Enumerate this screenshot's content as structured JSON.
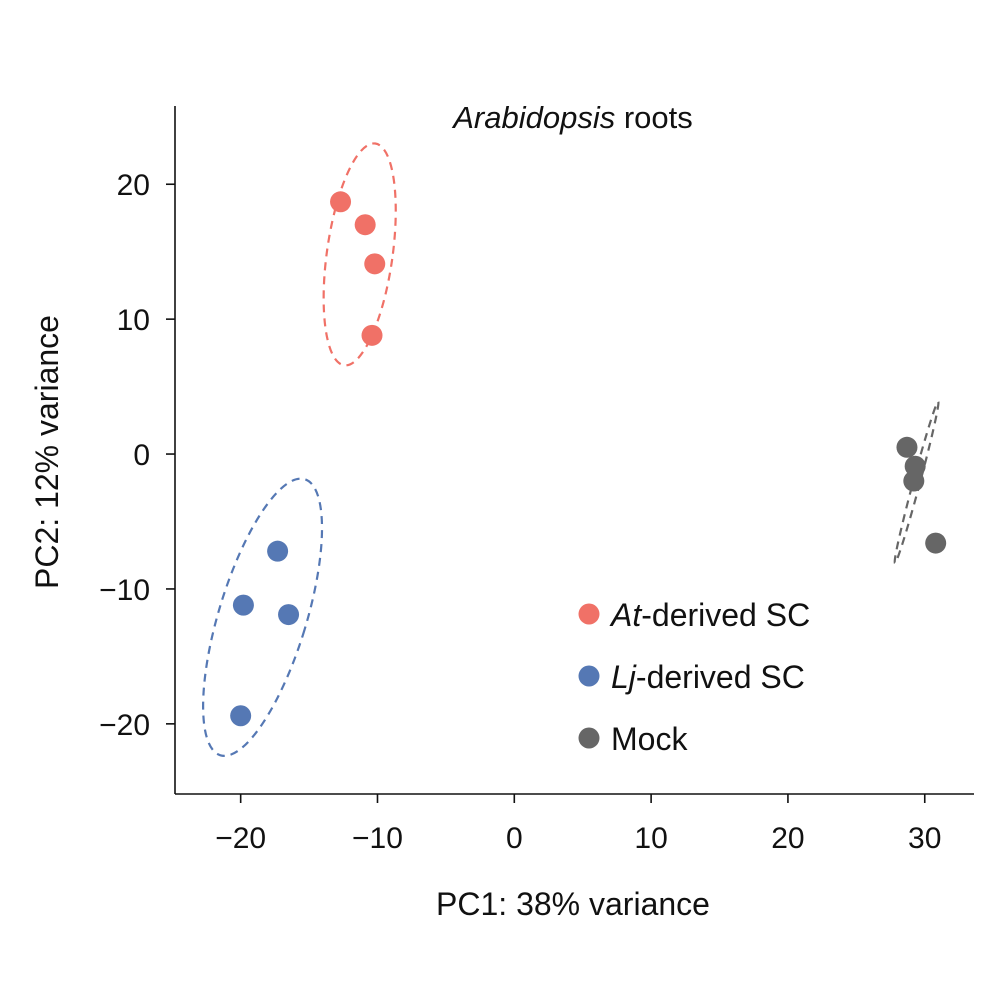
{
  "chart_data": {
    "type": "scatter",
    "title": {
      "italic": "Arabidopsis",
      "rest": " roots"
    },
    "xlabel": "PC1: 38% variance",
    "ylabel": "PC2: 12% variance",
    "xlim": [
      -24.8,
      33.6
    ],
    "ylim": [
      -25.2,
      25.8
    ],
    "xticks": [
      -20,
      -10,
      0,
      10,
      20,
      30
    ],
    "xtick_labels": [
      "−20",
      "−10",
      "0",
      "10",
      "20",
      "30"
    ],
    "yticks": [
      -20,
      -10,
      0,
      10,
      20
    ],
    "ytick_labels": [
      "−20",
      "−10",
      "0",
      "10",
      "20"
    ],
    "grid": false,
    "legend_placement": "bottom-right",
    "series": [
      {
        "name": "At-derived SC",
        "legend_italic": "At",
        "legend_rest": "-derived SC",
        "color": "#F07167",
        "x": [
          -12.7,
          -10.9,
          -10.2,
          -10.4
        ],
        "y": [
          18.7,
          17.0,
          14.1,
          8.8
        ],
        "ellipse": {
          "cx": -11.3,
          "cy": 14.8,
          "rx": 2.4,
          "ry": 8.3,
          "angle_deg": 8
        }
      },
      {
        "name": "Lj-derived SC",
        "legend_italic": "Lj",
        "legend_rest": "-derived SC",
        "color": "#5578B4",
        "x": [
          -17.3,
          -19.8,
          -16.5,
          -20.0
        ],
        "y": [
          -7.2,
          -11.2,
          -11.9,
          -19.4
        ],
        "ellipse": {
          "cx": -18.4,
          "cy": -12.1,
          "rx": 3.2,
          "ry": 10.7,
          "angle_deg": 17
        }
      },
      {
        "name": "Mock",
        "legend_italic": "",
        "legend_rest": "Mock",
        "color": "#666666",
        "x": [
          28.7,
          29.3,
          29.2,
          30.8
        ],
        "y": [
          0.5,
          -0.9,
          -2.0,
          -6.6
        ],
        "ellipse": {
          "cx": 29.4,
          "cy": -2.1,
          "rx": 0.25,
          "ry": 6.2,
          "angle_deg": 15
        }
      }
    ]
  }
}
